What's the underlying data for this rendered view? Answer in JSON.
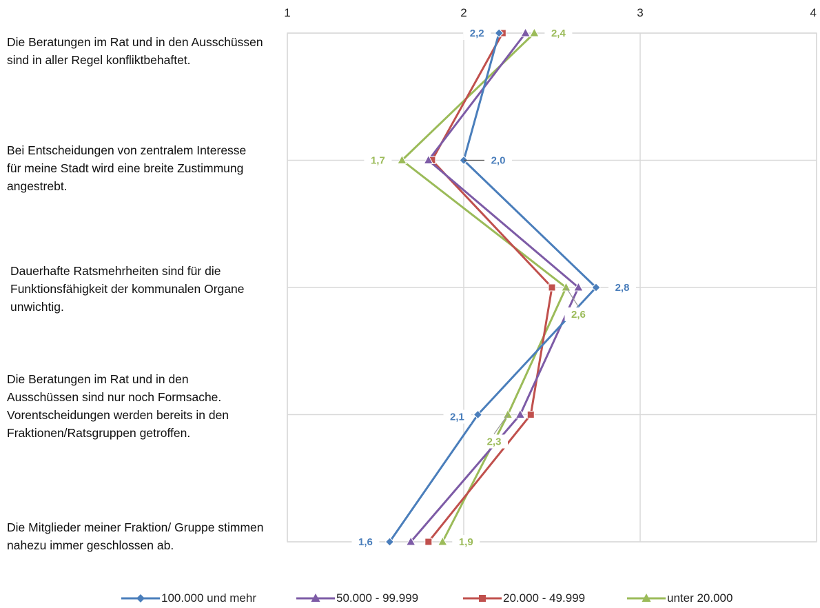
{
  "chart_data": {
    "type": "line",
    "orientation": "horizontal-value-axis",
    "x_ticks": [
      "1",
      "2",
      "3",
      "4"
    ],
    "xlim": [
      1,
      4
    ],
    "grid": true,
    "legend_position": "bottom",
    "categories": [
      "Die Beratungen im Rat und in den Ausschüssen sind in aller Regel konfliktbehaftet.",
      "Bei Entscheidungen von zentralem Interesse für meine Stadt wird eine breite Zustimmung angestrebt.",
      "Dauerhafte Ratsmehrheiten sind für die Funktionsfähigkeit der kommunalen Organe unwichtig.",
      "Die Beratungen im Rat und in den Ausschüssen sind nur noch Formsache. Vorentscheidungen werden bereits in den Fraktionen/Ratsgruppen getroffen.",
      "Die Mitglieder meiner Fraktion/ Gruppe stimmen nahezu immer geschlossen ab."
    ],
    "series": [
      {
        "name": "100.000 und mehr",
        "color": "#4a7ebb",
        "marker": "diamond",
        "values": [
          2.2,
          2.0,
          2.75,
          2.08,
          1.58
        ]
      },
      {
        "name": "50.000 - 99.999",
        "color": "#7d5ba6",
        "marker": "triangle",
        "values": [
          2.35,
          1.8,
          2.65,
          2.32,
          1.7
        ]
      },
      {
        "name": "20.000 - 49.999",
        "color": "#c0504d",
        "marker": "square",
        "values": [
          2.22,
          1.82,
          2.5,
          2.38,
          1.8
        ]
      },
      {
        "name": "unter 20.000",
        "color": "#9bbb59",
        "marker": "triangle",
        "values": [
          2.4,
          1.65,
          2.58,
          2.25,
          1.88
        ]
      }
    ],
    "data_labels": [
      {
        "text": "2,2",
        "series": 0,
        "category": 0
      },
      {
        "text": "2,4",
        "series": 3,
        "category": 0
      },
      {
        "text": "1,7",
        "series": 3,
        "category": 1
      },
      {
        "text": "2,0",
        "series": 0,
        "category": 1
      },
      {
        "text": "2,8",
        "series": 0,
        "category": 2
      },
      {
        "text": "2,6",
        "series": 3,
        "category": 2
      },
      {
        "text": "2,1",
        "series": 0,
        "category": 3
      },
      {
        "text": "2,3",
        "series": 3,
        "category": 3
      },
      {
        "text": "1,6",
        "series": 0,
        "category": 4
      },
      {
        "text": "1,9",
        "series": 3,
        "category": 4
      }
    ]
  }
}
